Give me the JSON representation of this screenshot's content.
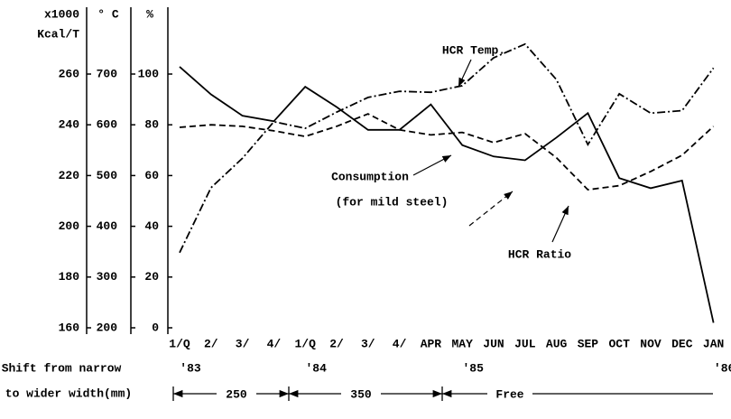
{
  "chart_data": {
    "type": "line",
    "categories": [
      "1/Q",
      "2/",
      "3/",
      "4/",
      "1/Q",
      "2/",
      "3/",
      "4/",
      "APR",
      "MAY",
      "JUN",
      "JUL",
      "AUG",
      "SEP",
      "OCT",
      "NOV",
      "DEC",
      "JAN"
    ],
    "ylabel": [
      "x1000",
      "Kcal/T"
    ],
    "y2label": "° C",
    "y3label": "%",
    "ylim": [
      160,
      260
    ],
    "yticks": [
      160,
      180,
      200,
      220,
      240,
      260
    ],
    "y2lim": [
      200,
      700
    ],
    "y2ticks": [
      200,
      300,
      400,
      500,
      600,
      700
    ],
    "y3lim": [
      0,
      100
    ],
    "y3ticks": [
      0,
      20,
      40,
      60,
      80,
      100
    ],
    "series": [
      {
        "name": "Consumption",
        "note": "(for mild steel)",
        "color": "#000000",
        "dash": "solid",
        "axis": "y",
        "values": [
          262.9,
          252,
          243.6,
          241.4,
          255,
          247,
          238,
          238,
          248,
          232,
          227.5,
          226,
          235,
          244.6,
          219,
          215,
          218,
          162
        ]
      },
      {
        "name": "HCR Temp.",
        "color": "#000000",
        "dash": "dashdot",
        "axis": "y2",
        "values": [
          348,
          476,
          534,
          606,
          593,
          625,
          654,
          666,
          664,
          677,
          732,
          759,
          689,
          561,
          661,
          623,
          628,
          712
        ]
      },
      {
        "name": "HCR Ratio",
        "color": "#000000",
        "dash": "dashed",
        "axis": "y3",
        "values": [
          79,
          80,
          79.4,
          77.6,
          75.4,
          79.4,
          84.3,
          78,
          76,
          77,
          73,
          76.5,
          67,
          54.4,
          56,
          61.6,
          68,
          79.4
        ]
      }
    ],
    "years": [
      {
        "label": "'83",
        "at": 0
      },
      {
        "label": "'84",
        "at": 4
      },
      {
        "label": "'85",
        "at": 9
      },
      {
        "label": "'86",
        "at": 17
      }
    ],
    "shift_label": [
      "Shift from narrow",
      "to wider width(mm)"
    ],
    "spans": [
      "250",
      "350",
      "Free"
    ]
  }
}
